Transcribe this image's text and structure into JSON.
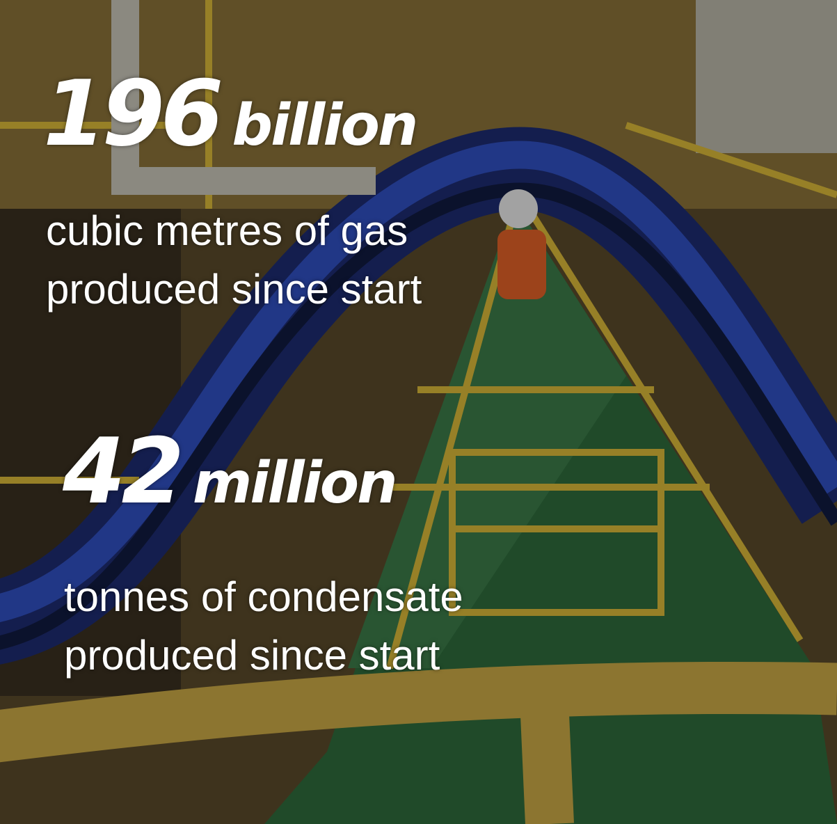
{
  "stats": [
    {
      "number": 196,
      "unit": "billion",
      "lines": [
        "cubic metres of gas",
        "produced since start"
      ]
    },
    {
      "number": 42,
      "unit": "million",
      "lines": [
        "tonnes of condensate",
        "produced since start"
      ]
    }
  ]
}
